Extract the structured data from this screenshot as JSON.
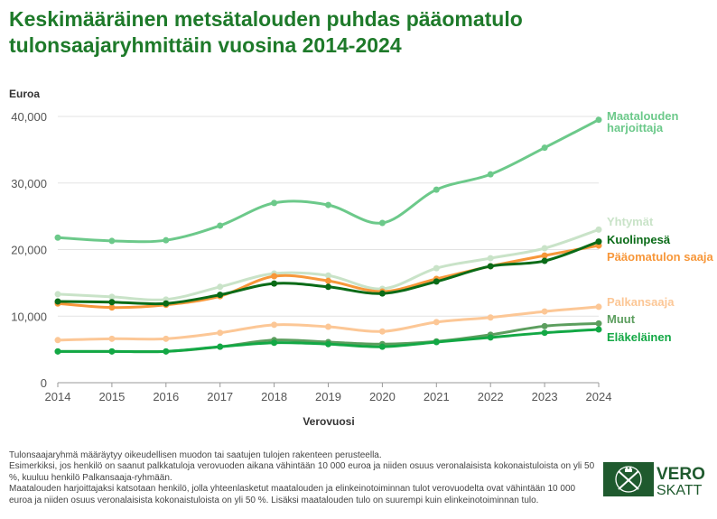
{
  "title": "Keskimääräinen metsätalouden puhdas pääomatulo tulonsaajaryhmittäin vuosina 2014-2024",
  "chart_data": {
    "type": "line",
    "title": "Keskimääräinen metsätalouden puhdas pääomatulo tulonsaajaryhmittäin vuosina 2014-2024",
    "xlabel": "Verovuosi",
    "ylabel": "Euroa",
    "x": [
      2014,
      2015,
      2016,
      2017,
      2018,
      2019,
      2020,
      2021,
      2022,
      2023,
      2024
    ],
    "x_tick_labels": [
      "2014",
      "2015",
      "2016",
      "2017",
      "2018",
      "2019",
      "2020",
      "2021",
      "2022",
      "2023",
      "2024"
    ],
    "ylim": [
      0,
      40000
    ],
    "y_ticks": [
      0,
      10000,
      20000,
      30000,
      40000
    ],
    "y_tick_labels": [
      "0",
      "10,000",
      "20,000",
      "30,000",
      "40,000"
    ],
    "grid": "horizontal",
    "legend": "direct labels at right end of lines",
    "series": [
      {
        "name": "Maatalouden harjoittaja",
        "color": "#6cc98a",
        "values": [
          21800,
          21300,
          21400,
          23600,
          27000,
          26700,
          24000,
          29000,
          31300,
          35300,
          39500
        ]
      },
      {
        "name": "Yhtymät",
        "color": "#c9e3c8",
        "values": [
          13300,
          12900,
          12500,
          14400,
          16400,
          16100,
          14100,
          17200,
          18700,
          20200,
          23000
        ]
      },
      {
        "name": "Kuolinpesä",
        "color": "#0a6b17",
        "values": [
          12200,
          12100,
          11900,
          13200,
          14900,
          14400,
          13400,
          15200,
          17500,
          18300,
          21200
        ]
      },
      {
        "name": "Pääomatulon saaja",
        "color": "#f7973a",
        "values": [
          11900,
          11300,
          11700,
          13000,
          16000,
          15300,
          13700,
          15600,
          17500,
          19100,
          20600
        ]
      },
      {
        "name": "Palkansaaja",
        "color": "#fcc796",
        "values": [
          6400,
          6600,
          6600,
          7500,
          8700,
          8400,
          7700,
          9100,
          9800,
          10700,
          11400
        ]
      },
      {
        "name": "Muut",
        "color": "#5c9e5e",
        "values": [
          4700,
          4700,
          4700,
          5400,
          6400,
          6100,
          5800,
          6200,
          7200,
          8500,
          8900
        ]
      },
      {
        "name": "Eläkeläinen",
        "color": "#13a845",
        "values": [
          4700,
          4700,
          4700,
          5400,
          6000,
          5800,
          5400,
          6100,
          6800,
          7500,
          8000
        ]
      }
    ],
    "label_lines": [
      [
        "Maatalouden",
        "harjoittaja"
      ],
      [
        "Yhtymät"
      ],
      [
        "Kuolinpesä"
      ],
      [
        "Pääomatulon saaja"
      ],
      [
        "Palkansaaja"
      ],
      [
        "Muut"
      ],
      [
        "Eläkeläinen"
      ]
    ]
  },
  "footnotes": [
    "Tulonsaajaryhmä määräytyy oikeudellisen muodon tai saatujen tulojen rakenteen perusteella.",
    "Esimerkiksi, jos henkilö on saanut palkkatuloja verovuoden aikana vähintään 10 000 euroa ja niiden osuus veronalaisista kokonaistuloista on yli 50 %, kuuluu henkilö Palkansaaja-ryhmään.",
    "Maatalouden harjoittajaksi katsotaan henkilö, jolla yhteenlasketut maatalouden ja elinkeinotoiminnan tulot verovuodelta ovat vähintään 10 000 euroa ja niiden osuus veronalaisista kokonaistuloista on yli 50 %. Lisäksi maatalouden tulo on suurempi kuin elinkeinotoiminnan tulo."
  ],
  "logo": {
    "line1": "VERO",
    "line2": "SKATT",
    "color": "#1f5a2e"
  }
}
